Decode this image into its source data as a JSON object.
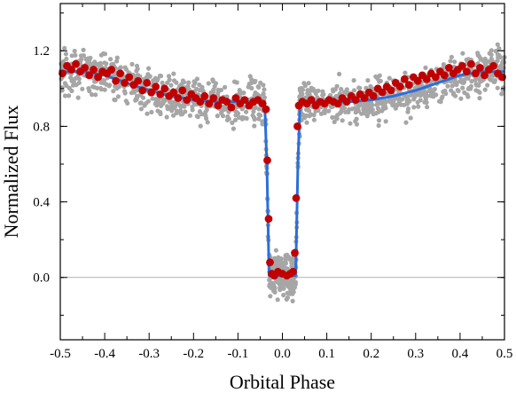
{
  "chart_data": {
    "type": "scatter",
    "title": "",
    "xlabel": "Orbital Phase",
    "ylabel": "Normalized Flux",
    "xlim": [
      -0.5,
      0.5
    ],
    "ylim": [
      -0.33,
      1.45
    ],
    "x_ticks": [
      -0.5,
      -0.4,
      -0.3,
      -0.2,
      -0.1,
      0.0,
      0.1,
      0.2,
      0.3,
      0.4,
      0.5
    ],
    "x_tick_labels": [
      "-0.5",
      "-0.4",
      "-0.3",
      "-0.2",
      "-0.1",
      "0.0",
      "0.1",
      "0.2",
      "0.3",
      "0.4",
      "0.5"
    ],
    "y_ticks": [
      0.0,
      0.4,
      0.8,
      1.2
    ],
    "y_tick_labels": [
      "0.0",
      "0.4",
      "0.8",
      "1.2"
    ],
    "zero_line": true,
    "grid": false,
    "legend": "none",
    "colors": {
      "raw": "#a6a6a6",
      "binned": "#c00000",
      "model": "#2a6fdb",
      "zero_line": "#9a9a9a"
    },
    "series": [
      {
        "kind": "raw-scatter",
        "description_count": 1500,
        "x": [],
        "y": []
      },
      {
        "kind": "binned-points",
        "x": [
          -0.495,
          -0.485,
          -0.475,
          -0.465,
          -0.455,
          -0.445,
          -0.435,
          -0.425,
          -0.415,
          -0.405,
          -0.395,
          -0.385,
          -0.375,
          -0.365,
          -0.355,
          -0.345,
          -0.335,
          -0.325,
          -0.315,
          -0.305,
          -0.295,
          -0.285,
          -0.275,
          -0.265,
          -0.255,
          -0.245,
          -0.235,
          -0.225,
          -0.215,
          -0.205,
          -0.195,
          -0.185,
          -0.175,
          -0.165,
          -0.155,
          -0.145,
          -0.135,
          -0.125,
          -0.115,
          -0.105,
          -0.095,
          -0.085,
          -0.075,
          -0.065,
          -0.055,
          -0.045,
          -0.037,
          -0.034,
          -0.031,
          -0.028,
          -0.024,
          -0.018,
          -0.01,
          0.0,
          0.01,
          0.018,
          0.024,
          0.028,
          0.031,
          0.034,
          0.037,
          0.045,
          0.055,
          0.065,
          0.075,
          0.085,
          0.095,
          0.105,
          0.115,
          0.125,
          0.135,
          0.145,
          0.155,
          0.165,
          0.175,
          0.185,
          0.195,
          0.205,
          0.215,
          0.225,
          0.235,
          0.245,
          0.255,
          0.265,
          0.275,
          0.285,
          0.295,
          0.305,
          0.315,
          0.325,
          0.335,
          0.345,
          0.355,
          0.365,
          0.375,
          0.385,
          0.395,
          0.405,
          0.415,
          0.425,
          0.435,
          0.445,
          0.455,
          0.465,
          0.475,
          0.485,
          0.495
        ],
        "y": [
          1.08,
          1.12,
          1.1,
          1.13,
          1.09,
          1.11,
          1.07,
          1.1,
          1.06,
          1.09,
          1.08,
          1.1,
          1.04,
          1.08,
          1.03,
          1.06,
          1.02,
          1.04,
          0.99,
          1.03,
          0.98,
          1.01,
          0.97,
          1.0,
          0.96,
          0.98,
          0.95,
          0.99,
          0.94,
          0.97,
          0.95,
          0.93,
          0.96,
          0.92,
          0.95,
          0.91,
          0.94,
          0.93,
          0.9,
          0.95,
          0.92,
          0.94,
          0.91,
          0.93,
          0.94,
          0.92,
          0.89,
          0.62,
          0.31,
          0.08,
          0.02,
          0.01,
          0.03,
          0.02,
          0.01,
          0.02,
          0.03,
          0.13,
          0.42,
          0.8,
          0.91,
          0.93,
          0.92,
          0.94,
          0.91,
          0.93,
          0.92,
          0.94,
          0.93,
          0.92,
          0.95,
          0.93,
          0.96,
          0.94,
          0.97,
          0.95,
          0.98,
          0.96,
          1.0,
          0.98,
          1.01,
          0.99,
          1.03,
          1.01,
          1.05,
          1.02,
          1.06,
          1.04,
          1.07,
          1.05,
          1.08,
          1.06,
          1.09,
          1.07,
          1.11,
          1.08,
          1.1,
          1.12,
          1.09,
          1.13,
          1.08,
          1.11,
          1.07,
          1.1,
          1.12,
          1.08,
          1.06
        ]
      },
      {
        "kind": "model-line",
        "x": [
          -0.5,
          -0.45,
          -0.4,
          -0.35,
          -0.3,
          -0.25,
          -0.2,
          -0.15,
          -0.1,
          -0.06,
          -0.04,
          -0.035,
          -0.03,
          -0.025,
          -0.02,
          -0.01,
          0.0,
          0.01,
          0.02,
          0.025,
          0.03,
          0.035,
          0.04,
          0.06,
          0.1,
          0.15,
          0.2,
          0.25,
          0.3,
          0.35,
          0.4,
          0.45,
          0.5
        ],
        "y": [
          1.09,
          1.09,
          1.07,
          1.03,
          0.99,
          0.96,
          0.94,
          0.93,
          0.93,
          0.93,
          0.93,
          0.6,
          0.01,
          0.01,
          0.01,
          0.01,
          0.01,
          0.01,
          0.01,
          0.01,
          0.01,
          0.6,
          0.93,
          0.93,
          0.93,
          0.93,
          0.94,
          0.96,
          0.99,
          1.03,
          1.07,
          1.09,
          1.09
        ]
      }
    ]
  }
}
